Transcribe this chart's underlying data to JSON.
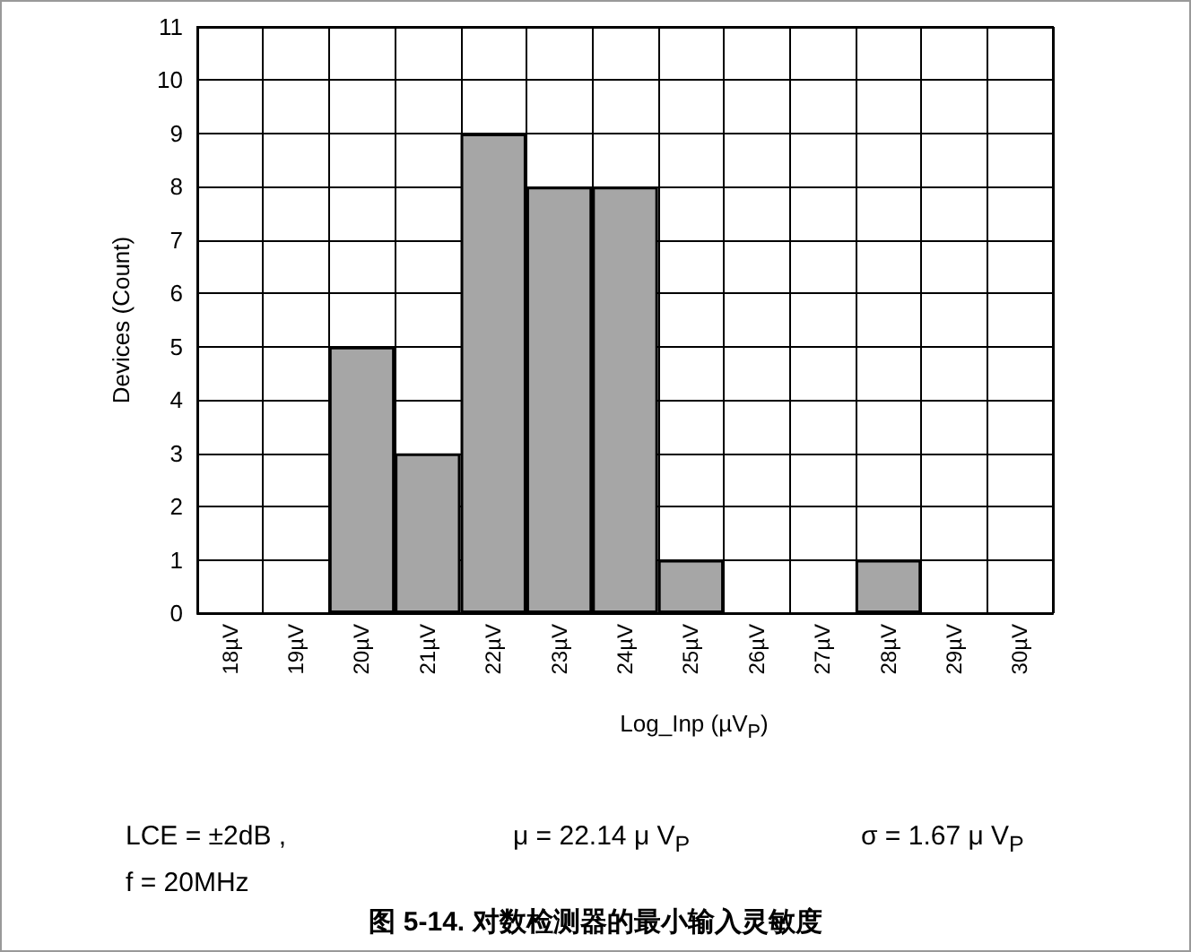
{
  "chart_data": {
    "type": "bar",
    "title": "图 5-14. 对数检测器的最小输入灵敏度",
    "xlabel": "Log_Inp (µV$_{P}$)",
    "ylabel": "Devices (Count)",
    "annotations": [
      "LCE = ±2dB ,",
      "μ = 22.14 μ V$_{P}$",
      "σ = 1.67 μ V$_{P}$",
      "f = 20MHz"
    ],
    "categories": [
      "18µV",
      "19µV",
      "20µV",
      "21µV",
      "22µV",
      "23µV",
      "24µV",
      "25µV",
      "26µV",
      "27µV",
      "28µV",
      "29µV",
      "30µV"
    ],
    "values": [
      0,
      0,
      5,
      3,
      9,
      8,
      8,
      1,
      0,
      0,
      1,
      0,
      0
    ],
    "color": "#a6a6a6",
    "ylim": [
      0,
      11
    ],
    "yticks": [
      0,
      1,
      2,
      3,
      4,
      5,
      6,
      7,
      8,
      9,
      10,
      11
    ],
    "grid": true
  }
}
